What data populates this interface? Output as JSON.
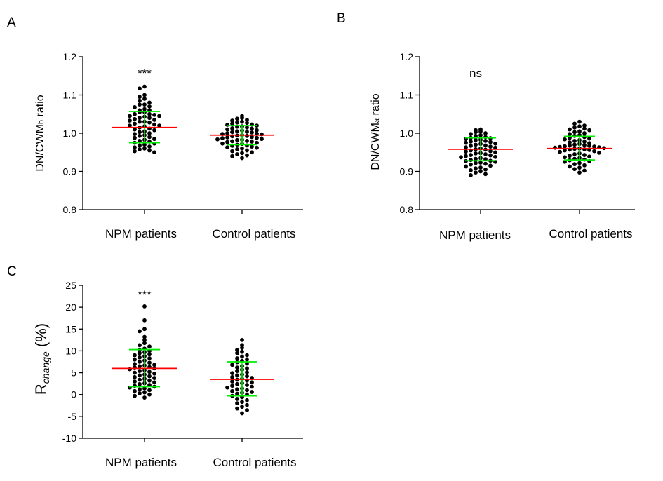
{
  "panels": [
    {
      "letter": "A",
      "ylabel": {
        "prefix": "DN/CWM",
        "sub": "b",
        "suffix": " ratio"
      },
      "ylim": [
        0.8,
        1.2
      ],
      "yticks": [
        0.8,
        0.9,
        1.0,
        1.1,
        1.2
      ],
      "ytick_labels": [
        "0.8",
        "0.9",
        "1.0",
        "1.1",
        "1.2"
      ],
      "categories": [
        "NPM patients",
        "Control patients"
      ],
      "significance": "***"
    },
    {
      "letter": "B",
      "ylabel": {
        "prefix": "DN/CWM",
        "sub": "a",
        "suffix": " ratio"
      },
      "ylim": [
        0.8,
        1.2
      ],
      "yticks": [
        0.8,
        0.9,
        1.0,
        1.1,
        1.2
      ],
      "ytick_labels": [
        "0.8",
        "0.9",
        "1.0",
        "1.1",
        "1.2"
      ],
      "categories": [
        "NPM patients",
        "Control patients"
      ],
      "significance": "ns"
    },
    {
      "letter": "C",
      "ylabel": {
        "prefix": "R",
        "sub": "change",
        "suffix": " (%)"
      },
      "ylim": [
        -10,
        25
      ],
      "yticks": [
        -10,
        -5,
        0,
        5,
        10,
        15,
        20,
        25
      ],
      "ytick_labels": [
        "-10",
        "-5",
        "0",
        "5",
        "10",
        "15",
        "20",
        "25"
      ],
      "categories": [
        "NPM patients",
        "Control patients"
      ],
      "significance": "***"
    }
  ],
  "colors": {
    "points": "#000000",
    "mean": "#ff0000",
    "sd": "#00ee00"
  },
  "chart_data": [
    {
      "type": "scatter",
      "title": "A",
      "ylabel": "DN/CWMb ratio",
      "ylim": [
        0.8,
        1.2
      ],
      "categories": [
        "NPM patients",
        "Control patients"
      ],
      "series": [
        {
          "name": "NPM patients",
          "mean": 1.015,
          "sd_low": 0.975,
          "sd_high": 1.057,
          "values": [
            1.122,
            1.117,
            1.1,
            1.095,
            1.09,
            1.085,
            1.08,
            1.075,
            1.075,
            1.07,
            1.068,
            1.063,
            1.06,
            1.06,
            1.055,
            1.055,
            1.05,
            1.05,
            1.048,
            1.045,
            1.045,
            1.043,
            1.04,
            1.04,
            1.037,
            1.035,
            1.033,
            1.03,
            1.03,
            1.028,
            1.025,
            1.023,
            1.02,
            1.02,
            1.018,
            1.015,
            1.012,
            1.01,
            1.008,
            1.005,
            1.003,
            1.0,
            0.998,
            0.995,
            0.993,
            0.99,
            0.988,
            0.985,
            0.983,
            0.98,
            0.978,
            0.975,
            0.973,
            0.97,
            0.968,
            0.965,
            0.963,
            0.96,
            0.958,
            0.955,
            0.953,
            0.95
          ]
        },
        {
          "name": "Control patients",
          "mean": 0.995,
          "sd_low": 0.97,
          "sd_high": 1.02,
          "values": [
            1.045,
            1.04,
            1.038,
            1.035,
            1.033,
            1.03,
            1.028,
            1.027,
            1.025,
            1.023,
            1.022,
            1.02,
            1.018,
            1.017,
            1.015,
            1.013,
            1.012,
            1.01,
            1.008,
            1.007,
            1.005,
            1.004,
            1.003,
            1.002,
            1.0,
            0.999,
            0.998,
            0.997,
            0.995,
            0.994,
            0.993,
            0.992,
            0.99,
            0.989,
            0.988,
            0.987,
            0.985,
            0.984,
            0.983,
            0.982,
            0.98,
            0.979,
            0.978,
            0.977,
            0.975,
            0.973,
            0.972,
            0.97,
            0.968,
            0.967,
            0.965,
            0.963,
            0.962,
            0.96,
            0.958,
            0.955,
            0.953,
            0.95,
            0.948,
            0.945,
            0.942,
            0.94,
            0.935
          ]
        }
      ]
    },
    {
      "type": "scatter",
      "title": "B",
      "ylabel": "DN/CWMa ratio",
      "ylim": [
        0.8,
        1.2
      ],
      "categories": [
        "NPM patients",
        "Control patients"
      ],
      "series": [
        {
          "name": "NPM patients",
          "mean": 0.958,
          "sd_low": 0.928,
          "sd_high": 0.988,
          "values": [
            1.01,
            1.008,
            1.005,
            1.003,
            1.0,
            0.998,
            0.995,
            0.993,
            0.99,
            0.988,
            0.987,
            0.985,
            0.983,
            0.982,
            0.98,
            0.978,
            0.977,
            0.975,
            0.973,
            0.972,
            0.97,
            0.968,
            0.967,
            0.965,
            0.963,
            0.962,
            0.96,
            0.958,
            0.957,
            0.955,
            0.953,
            0.952,
            0.95,
            0.948,
            0.947,
            0.945,
            0.943,
            0.942,
            0.94,
            0.938,
            0.937,
            0.935,
            0.933,
            0.932,
            0.93,
            0.928,
            0.927,
            0.925,
            0.923,
            0.922,
            0.92,
            0.918,
            0.915,
            0.913,
            0.91,
            0.908,
            0.905,
            0.903,
            0.9,
            0.897,
            0.893,
            0.89
          ]
        },
        {
          "name": "Control patients",
          "mean": 0.96,
          "sd_low": 0.93,
          "sd_high": 0.992,
          "values": [
            1.03,
            1.025,
            1.02,
            1.018,
            1.015,
            1.012,
            1.01,
            1.008,
            1.005,
            1.003,
            1.0,
            0.998,
            0.995,
            0.993,
            0.99,
            0.988,
            0.986,
            0.984,
            0.982,
            0.98,
            0.978,
            0.976,
            0.974,
            0.972,
            0.97,
            0.969,
            0.968,
            0.967,
            0.966,
            0.965,
            0.964,
            0.963,
            0.962,
            0.961,
            0.96,
            0.959,
            0.958,
            0.957,
            0.956,
            0.955,
            0.953,
            0.951,
            0.949,
            0.947,
            0.945,
            0.943,
            0.941,
            0.939,
            0.937,
            0.935,
            0.933,
            0.931,
            0.929,
            0.927,
            0.925,
            0.922,
            0.919,
            0.916,
            0.913,
            0.91,
            0.906,
            0.902,
            0.897
          ]
        }
      ]
    },
    {
      "type": "scatter",
      "title": "C",
      "ylabel": "Rchange (%)",
      "ylim": [
        -10,
        25
      ],
      "categories": [
        "NPM patients",
        "Control patients"
      ],
      "series": [
        {
          "name": "NPM patients",
          "mean": 6.0,
          "sd_low": 1.8,
          "sd_high": 10.3,
          "values": [
            20.2,
            17.0,
            15.0,
            14.5,
            13.2,
            12.5,
            11.8,
            11.3,
            11.0,
            10.5,
            10.2,
            10.0,
            9.7,
            9.5,
            9.2,
            9.0,
            8.8,
            8.5,
            8.3,
            8.0,
            7.8,
            7.5,
            7.3,
            7.0,
            6.8,
            6.7,
            6.5,
            6.3,
            6.2,
            6.0,
            5.8,
            5.6,
            5.4,
            5.2,
            5.0,
            4.8,
            4.6,
            4.4,
            4.2,
            4.0,
            3.8,
            3.6,
            3.4,
            3.2,
            3.0,
            2.8,
            2.6,
            2.4,
            2.2,
            2.0,
            1.8,
            1.6,
            1.4,
            1.2,
            1.0,
            0.8,
            0.5,
            0.3,
            0.0,
            -0.3,
            -0.7
          ]
        },
        {
          "name": "Control patients",
          "mean": 3.5,
          "sd_low": -0.3,
          "sd_high": 7.5,
          "values": [
            12.5,
            11.3,
            10.7,
            10.2,
            9.8,
            9.5,
            9.0,
            8.7,
            8.3,
            8.0,
            7.7,
            7.4,
            7.1,
            6.8,
            6.5,
            6.2,
            6.0,
            5.7,
            5.4,
            5.1,
            4.9,
            4.6,
            4.4,
            4.2,
            4.0,
            3.8,
            3.6,
            3.4,
            3.2,
            3.0,
            2.8,
            2.6,
            2.4,
            2.2,
            2.0,
            1.8,
            1.6,
            1.4,
            1.2,
            1.0,
            0.8,
            0.6,
            0.4,
            0.2,
            0.0,
            -0.3,
            -0.6,
            -1.0,
            -1.3,
            -1.7,
            -2.0,
            -2.4,
            -2.8,
            -3.2,
            -3.6,
            -4.3
          ]
        }
      ]
    }
  ]
}
